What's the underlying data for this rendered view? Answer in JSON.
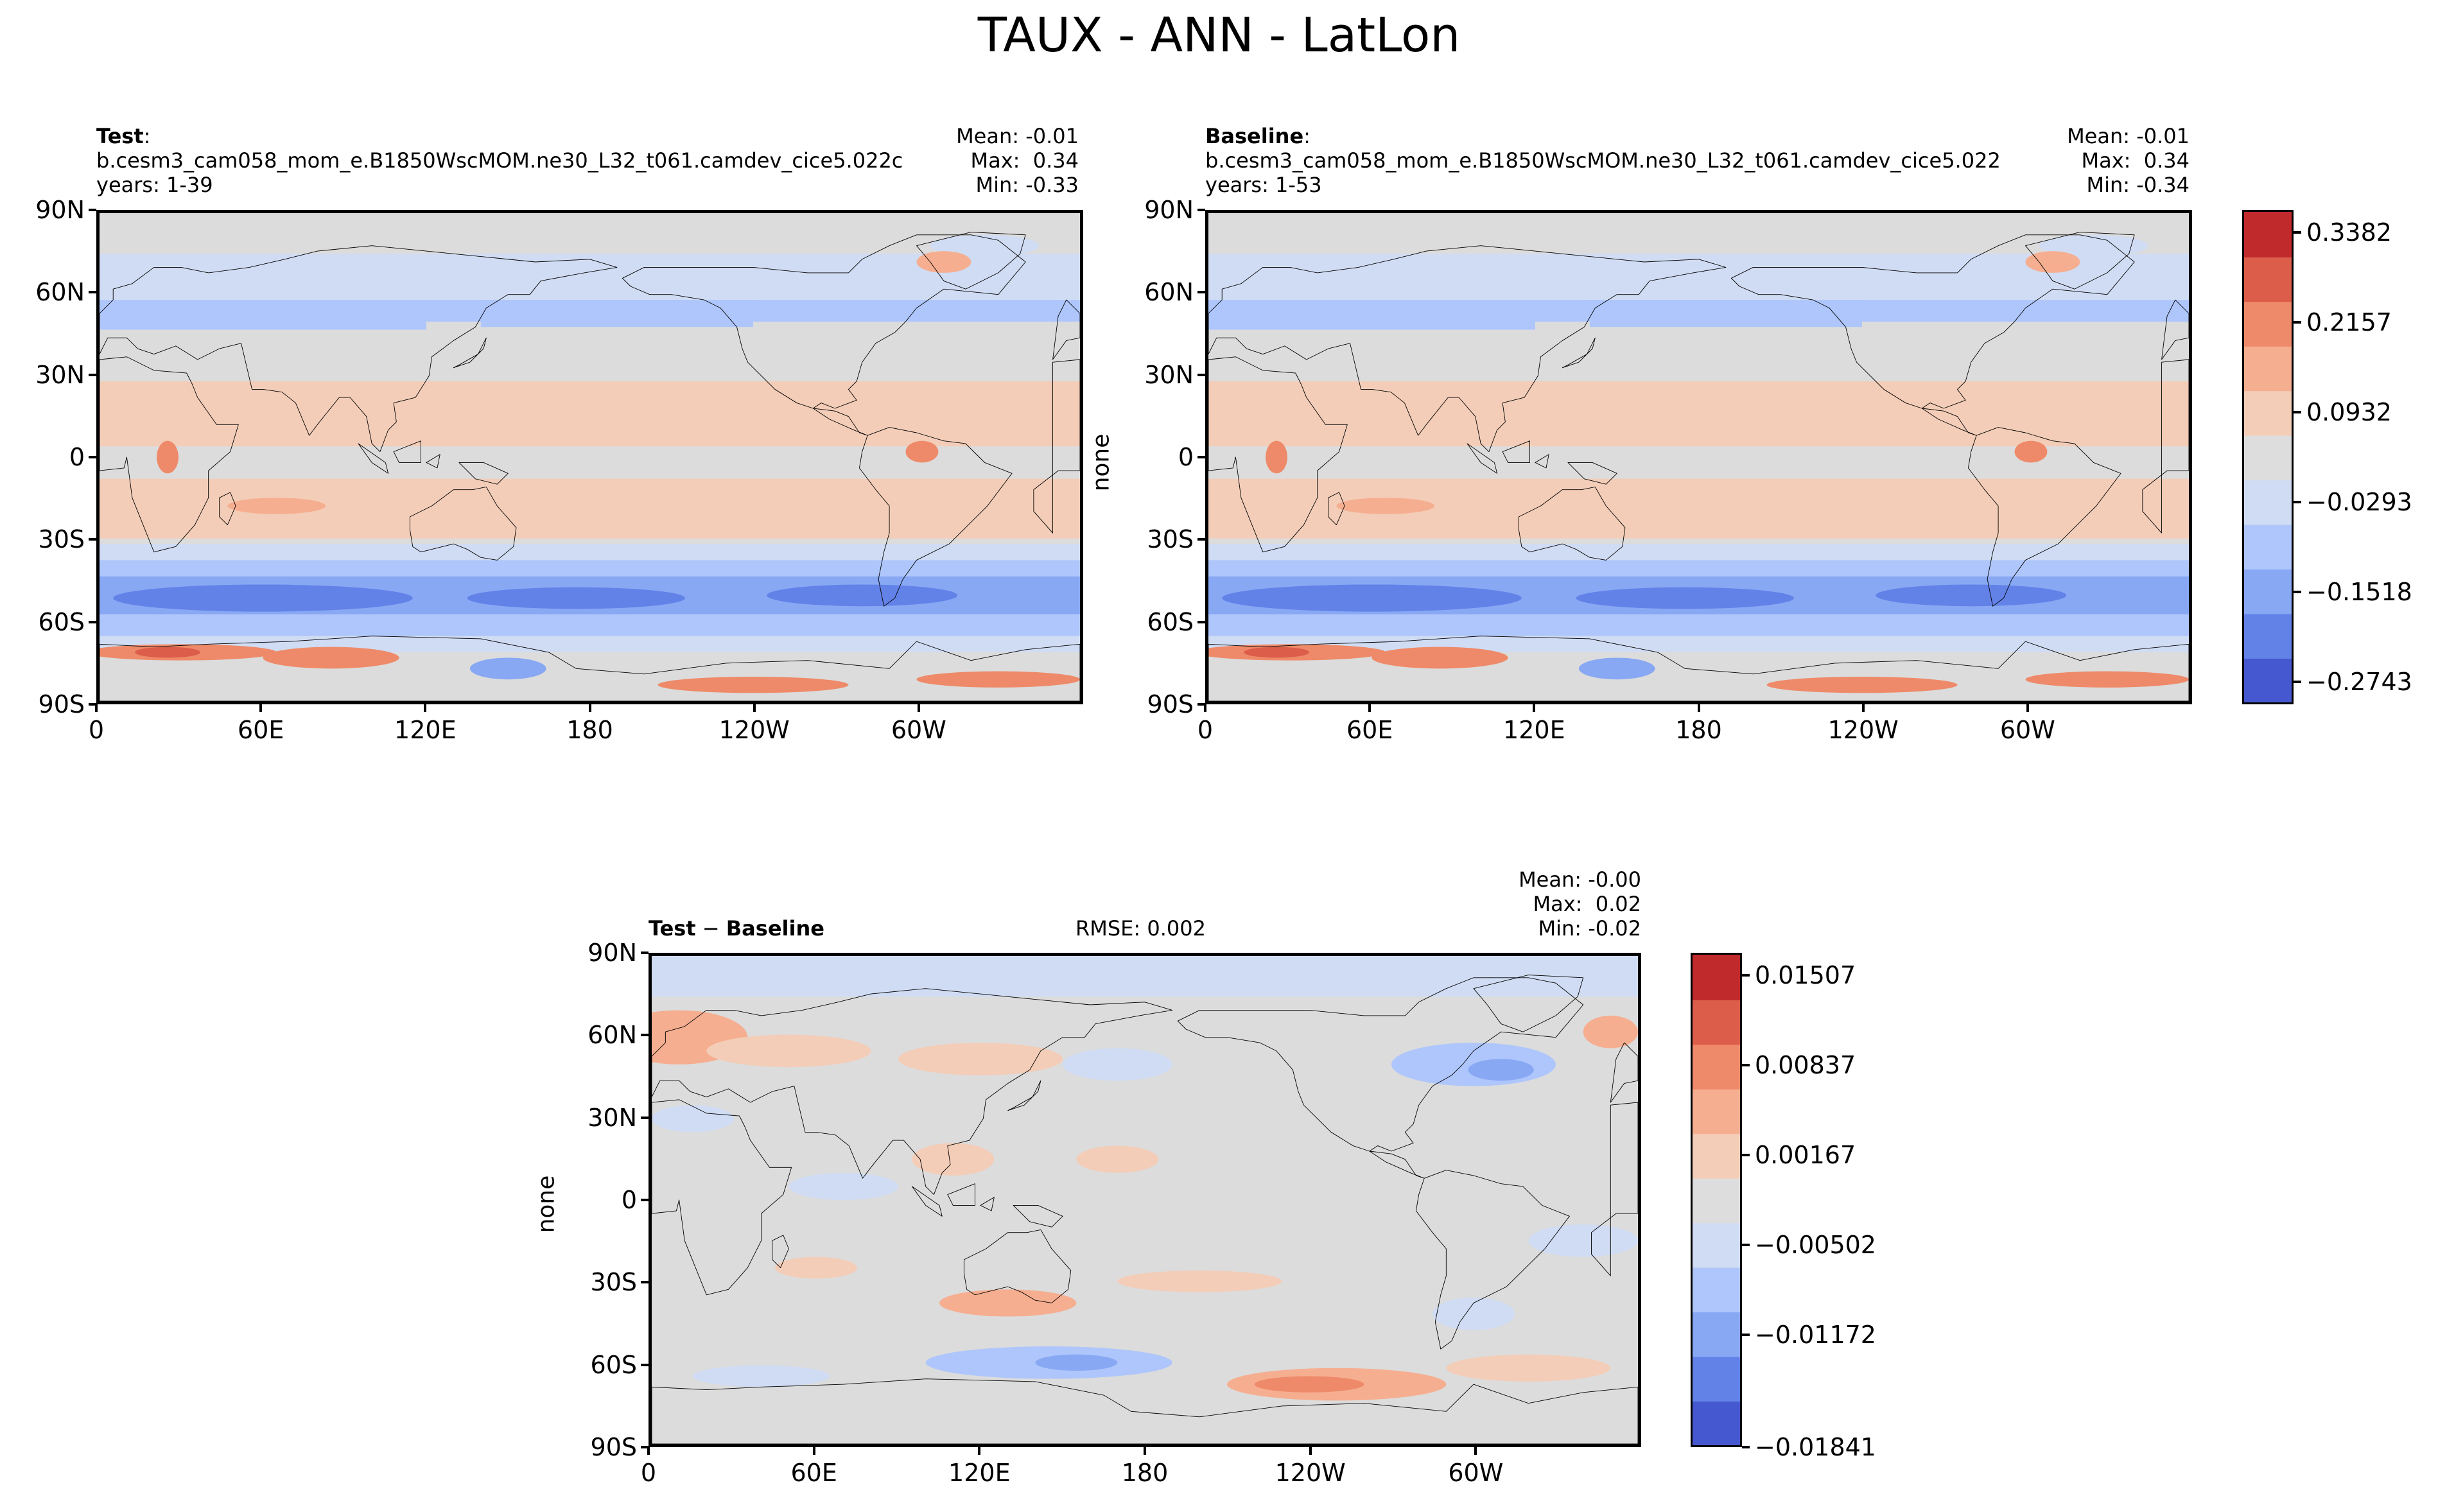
{
  "title": "TAUX - ANN - LatLon",
  "xticks": [
    "0",
    "60E",
    "120E",
    "180",
    "120W",
    "60W"
  ],
  "yticks": [
    "90N",
    "60N",
    "30N",
    "0",
    "30S",
    "60S",
    "90S"
  ],
  "panels": {
    "test": {
      "label_bold": "Test",
      "label_rest": ":",
      "case": "b.cesm3_cam058_mom_e.B1850WscMOM.ne30_L32_t061.camdev_cice5.022c",
      "years": "years: 1-39",
      "mean": "Mean: -0.01",
      "max": "Max:  0.34",
      "min": "Min: -0.33"
    },
    "baseline": {
      "label_bold": "Baseline",
      "label_rest": ":",
      "case": "b.cesm3_cam058_mom_e.B1850WscMOM.ne30_L32_t061.camdev_cice5.022",
      "years": "years: 1-53",
      "mean": "Mean: -0.01",
      "max": "Max:  0.34",
      "min": "Min: -0.34",
      "ylabel": "none"
    },
    "diff": {
      "label_a": "Test",
      "label_op": " − ",
      "label_b": "Baseline",
      "rmse": "RMSE: 0.002",
      "mean": "Mean: -0.00",
      "max": "Max:  0.02",
      "min": "Min: -0.02",
      "ylabel": "none"
    }
  },
  "colorbars": {
    "main": {
      "ticks": [
        "0.3382",
        "0.2157",
        "0.0932",
        "−0.0293",
        "−0.1518",
        "−0.2743"
      ],
      "colors": [
        "#4658d0",
        "#6382e8",
        "#88a8f4",
        "#aec6fb",
        "#d0dcf3",
        "#dddddd",
        "#f3cdb8",
        "#f6ae90",
        "#ee8a69",
        "#dc5d4a",
        "#c02a2d"
      ]
    },
    "diff": {
      "ticks": [
        "0.01507",
        "0.00837",
        "0.00167",
        "−0.00502",
        "−0.01172",
        "−0.01841"
      ],
      "colors": [
        "#4658d0",
        "#6382e8",
        "#88a8f4",
        "#aec6fb",
        "#d0dcf3",
        "#dddddd",
        "#f3cdb8",
        "#f6ae90",
        "#ee8a69",
        "#dc5d4a",
        "#c02a2d"
      ]
    }
  }
}
